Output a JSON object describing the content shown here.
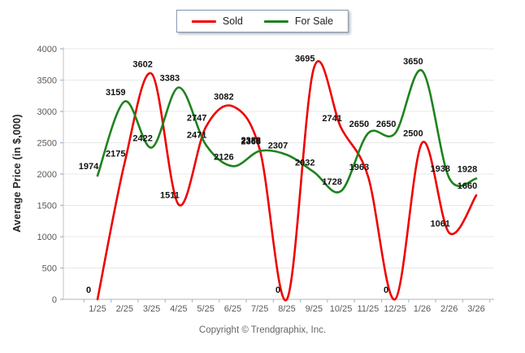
{
  "legend": {
    "items": [
      {
        "label": "Sold",
        "color": "#ee0000"
      },
      {
        "label": "For Sale",
        "color": "#1e821e"
      }
    ]
  },
  "chart_data": {
    "type": "line",
    "curve": "spline",
    "x": [
      "1/25",
      "2/25",
      "3/25",
      "4/25",
      "5/25",
      "6/25",
      "7/25",
      "8/25",
      "9/25",
      "10/25",
      "11/25",
      "12/25",
      "1/26",
      "2/26",
      "3/26"
    ],
    "series": [
      {
        "name": "Sold",
        "color": "#ee0000",
        "values": [
          0,
          2175,
          3602,
          1511,
          2747,
          3082,
          2388,
          0,
          3695,
          2741,
          1963,
          0,
          2500,
          1061,
          1660
        ]
      },
      {
        "name": "For Sale",
        "color": "#1e821e",
        "values": [
          1974,
          3159,
          2422,
          3383,
          2471,
          2126,
          2368,
          2307,
          2032,
          1728,
          2650,
          2650,
          3650,
          1938,
          1928
        ]
      }
    ],
    "title": "",
    "xlabel": "",
    "ylabel": "Average Price (in $,000)",
    "ylim": [
      0,
      4000
    ],
    "yticks": [
      0,
      500,
      1000,
      1500,
      2000,
      2500,
      3000,
      3500,
      4000
    ],
    "grid": true,
    "legend_position": "top-center",
    "colors": {
      "gridline": "#e8e8e8",
      "axis_line": "#c2c2c2",
      "tick_mark": "#a5c0da",
      "tick_label": "#5a5a5a",
      "data_label": "#111111"
    }
  },
  "footer": {
    "copyright": "Copyright © Trendgraphix, Inc."
  }
}
